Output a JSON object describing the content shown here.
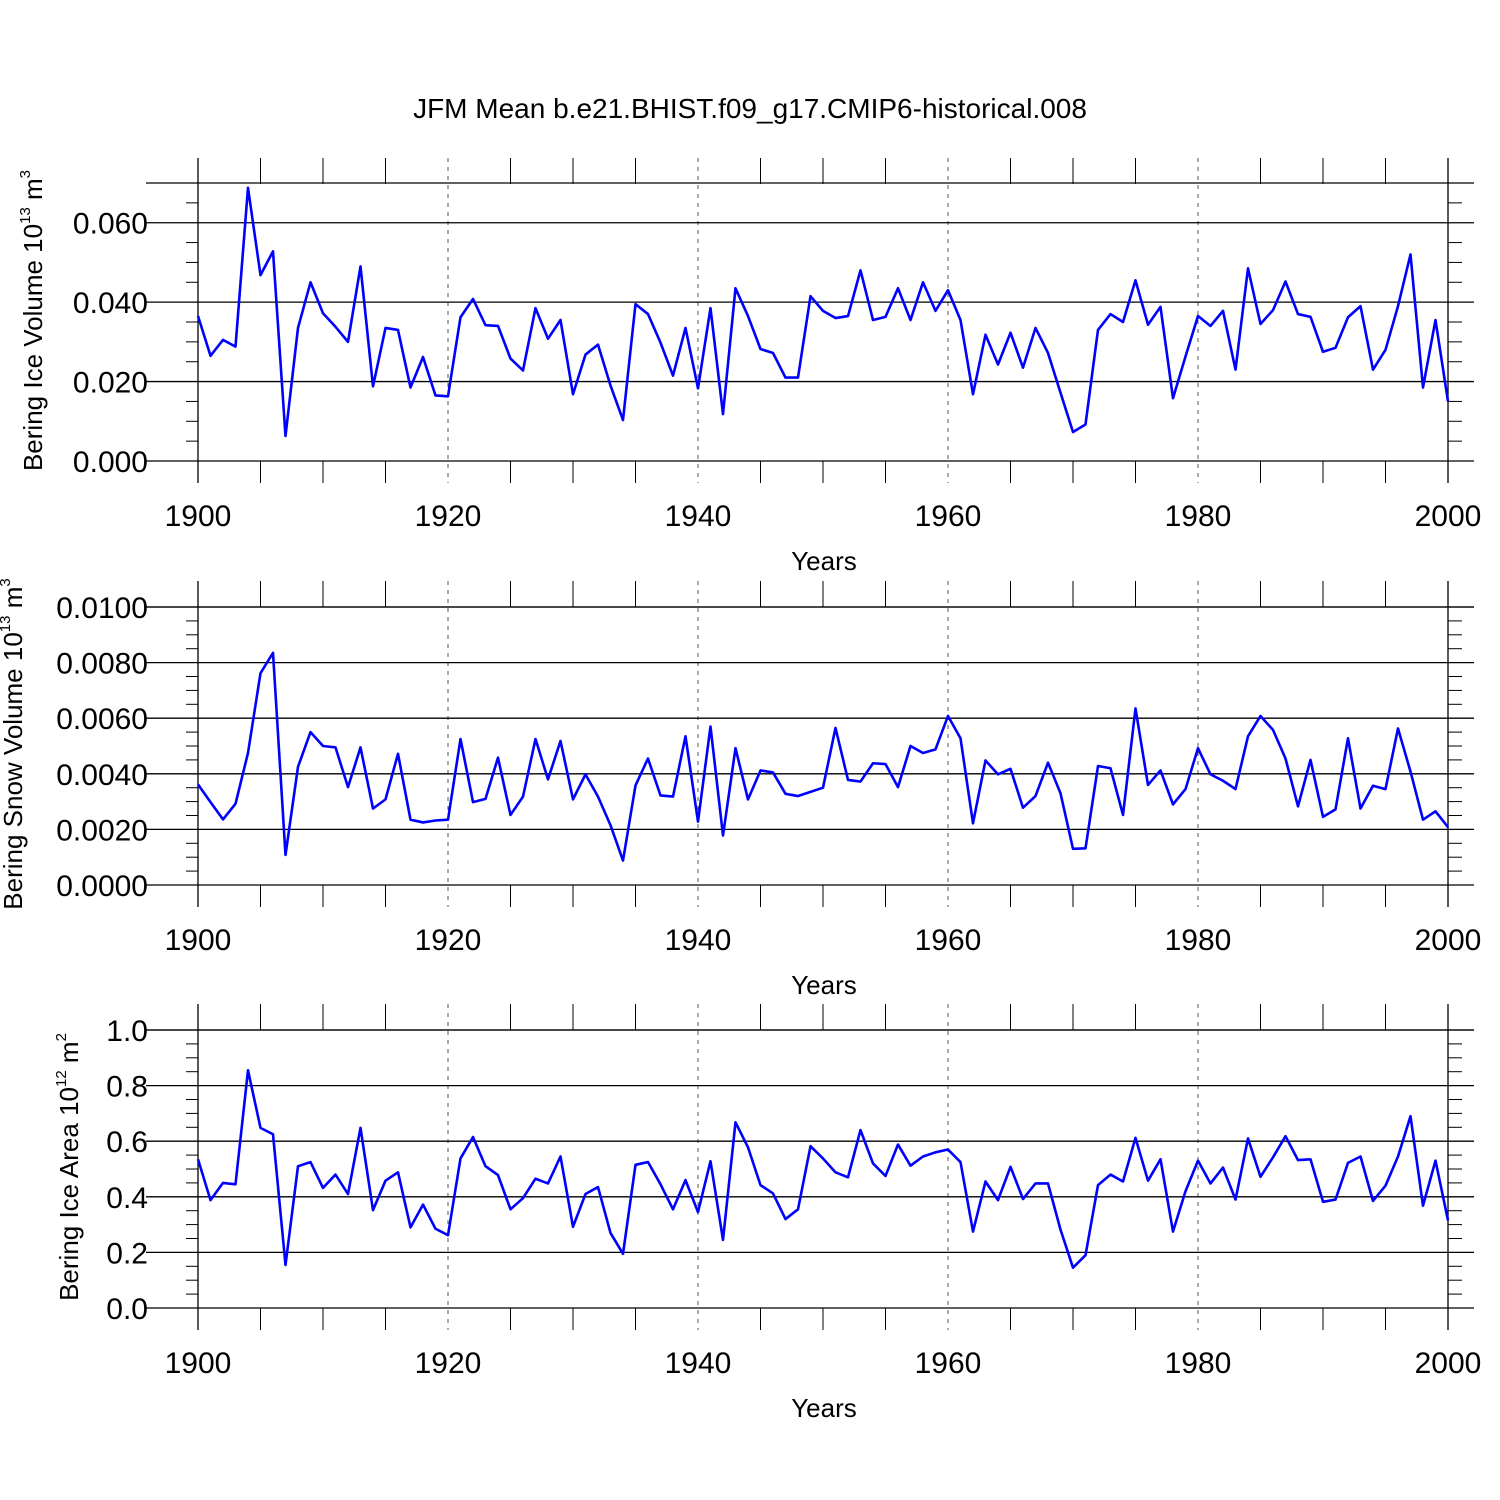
{
  "figure_title": "JFM Mean b.e21.BHIST.f09_g17.CMIP6-historical.008",
  "line_color": "#0000ff",
  "chart_data": [
    {
      "type": "line",
      "title": "JFM Mean b.e21.BHIST.f09_g17.CMIP6-historical.008",
      "xlabel": "Years",
      "ylabel": "Bering Ice Volume",
      "ylabel_unit_base": "10",
      "ylabel_unit_exp": "13",
      "ylabel_unit_m": "m",
      "ylabel_unit_m_exp": "3",
      "xlim": [
        1900,
        2000
      ],
      "ylim": [
        0.0,
        0.07
      ],
      "xticks": [
        1900,
        1920,
        1940,
        1960,
        1980,
        2000
      ],
      "xtick_labels": [
        "1900",
        "1920",
        "1940",
        "1960",
        "1980",
        "2000"
      ],
      "yticks": [
        0.0,
        0.02,
        0.04,
        0.06
      ],
      "ytick_labels": [
        "0.000",
        "0.020",
        "0.040",
        "0.060"
      ],
      "y_minor_step": 0.005,
      "series": [
        {
          "name": "Bering Ice Volume",
          "x_start": 1900,
          "values": [
            0.0365,
            0.0265,
            0.0305,
            0.0288,
            0.0688,
            0.0468,
            0.0528,
            0.0063,
            0.0335,
            0.045,
            0.0372,
            0.0338,
            0.03,
            0.049,
            0.0188,
            0.0335,
            0.033,
            0.0185,
            0.0262,
            0.0165,
            0.0163,
            0.0362,
            0.0408,
            0.0342,
            0.034,
            0.0258,
            0.0228,
            0.0385,
            0.0308,
            0.0355,
            0.0168,
            0.0268,
            0.0293,
            0.019,
            0.0103,
            0.0395,
            0.037,
            0.0298,
            0.0215,
            0.0335,
            0.0183,
            0.0385,
            0.0118,
            0.0435,
            0.0365,
            0.0282,
            0.0272,
            0.021,
            0.021,
            0.0415,
            0.0378,
            0.036,
            0.0365,
            0.048,
            0.0355,
            0.0363,
            0.0435,
            0.0355,
            0.045,
            0.0378,
            0.043,
            0.0355,
            0.0168,
            0.0318,
            0.0243,
            0.0323,
            0.0235,
            0.0335,
            0.0272,
            0.0172,
            0.0073,
            0.0092,
            0.033,
            0.037,
            0.035,
            0.0455,
            0.0343,
            0.0388,
            0.0158,
            0.0263,
            0.0365,
            0.034,
            0.0378,
            0.023,
            0.0485,
            0.0345,
            0.038,
            0.0452,
            0.037,
            0.0363,
            0.0275,
            0.0285,
            0.0362,
            0.039,
            0.023,
            0.028,
            0.039,
            0.052,
            0.0185,
            0.0355,
            0.015
          ]
        }
      ]
    },
    {
      "type": "line",
      "xlabel": "Years",
      "ylabel": "Bering Snow Volume",
      "ylabel_unit_base": "10",
      "ylabel_unit_exp": "13",
      "ylabel_unit_m": "m",
      "ylabel_unit_m_exp": "3",
      "xlim": [
        1900,
        2000
      ],
      "ylim": [
        0.0,
        0.01
      ],
      "xticks": [
        1900,
        1920,
        1940,
        1960,
        1980,
        2000
      ],
      "xtick_labels": [
        "1900",
        "1920",
        "1940",
        "1960",
        "1980",
        "2000"
      ],
      "yticks": [
        0.0,
        0.002,
        0.004,
        0.006,
        0.008,
        0.01
      ],
      "ytick_labels": [
        "0.0000",
        "0.0020",
        "0.0040",
        "0.0060",
        "0.0080",
        "0.0100"
      ],
      "y_minor_step": 0.0005,
      "series": [
        {
          "name": "Bering Snow Volume",
          "x_start": 1900,
          "values": [
            0.00362,
            0.00298,
            0.00236,
            0.00292,
            0.00475,
            0.00762,
            0.00835,
            0.00108,
            0.00425,
            0.0055,
            0.005,
            0.00495,
            0.00352,
            0.00495,
            0.00275,
            0.00308,
            0.00472,
            0.00235,
            0.00225,
            0.00232,
            0.00235,
            0.00525,
            0.00298,
            0.0031,
            0.00458,
            0.00252,
            0.00318,
            0.00525,
            0.0038,
            0.00518,
            0.00308,
            0.00398,
            0.00318,
            0.00215,
            0.00088,
            0.00358,
            0.00455,
            0.00322,
            0.00318,
            0.00535,
            0.00228,
            0.0057,
            0.00178,
            0.00492,
            0.00308,
            0.00412,
            0.00405,
            0.00328,
            0.0032,
            0.00335,
            0.0035,
            0.00565,
            0.00378,
            0.00372,
            0.00438,
            0.00435,
            0.00352,
            0.005,
            0.00475,
            0.00488,
            0.00608,
            0.00528,
            0.00222,
            0.00448,
            0.00398,
            0.00418,
            0.00278,
            0.0032,
            0.0044,
            0.0033,
            0.0013,
            0.00132,
            0.00428,
            0.0042,
            0.00252,
            0.00635,
            0.0036,
            0.00412,
            0.0029,
            0.00345,
            0.00492,
            0.00398,
            0.00375,
            0.00345,
            0.00535,
            0.00608,
            0.00558,
            0.00455,
            0.00283,
            0.0045,
            0.00245,
            0.00272,
            0.00528,
            0.00275,
            0.00357,
            0.00345,
            0.00563,
            0.00408,
            0.00235,
            0.00265,
            0.00208
          ]
        }
      ]
    },
    {
      "type": "line",
      "xlabel": "Years",
      "ylabel": "Bering Ice Area",
      "ylabel_unit_base": "10",
      "ylabel_unit_exp": "12",
      "ylabel_unit_m": "m",
      "ylabel_unit_m_exp": "2",
      "xlim": [
        1900,
        2000
      ],
      "ylim": [
        0.0,
        1.0
      ],
      "xticks": [
        1900,
        1920,
        1940,
        1960,
        1980,
        2000
      ],
      "xtick_labels": [
        "1900",
        "1920",
        "1940",
        "1960",
        "1980",
        "2000"
      ],
      "yticks": [
        0.0,
        0.2,
        0.4,
        0.6,
        0.8,
        1.0
      ],
      "ytick_labels": [
        "0.0",
        "0.2",
        "0.4",
        "0.6",
        "0.8",
        "1.0"
      ],
      "y_minor_step": 0.05,
      "series": [
        {
          "name": "Bering Ice Area",
          "x_start": 1900,
          "values": [
            0.535,
            0.388,
            0.45,
            0.445,
            0.855,
            0.648,
            0.625,
            0.155,
            0.51,
            0.525,
            0.432,
            0.48,
            0.41,
            0.648,
            0.352,
            0.458,
            0.488,
            0.29,
            0.372,
            0.285,
            0.262,
            0.538,
            0.615,
            0.51,
            0.478,
            0.355,
            0.395,
            0.465,
            0.448,
            0.545,
            0.292,
            0.41,
            0.435,
            0.27,
            0.195,
            0.515,
            0.525,
            0.445,
            0.355,
            0.46,
            0.345,
            0.528,
            0.245,
            0.668,
            0.578,
            0.442,
            0.412,
            0.32,
            0.355,
            0.582,
            0.538,
            0.488,
            0.47,
            0.64,
            0.52,
            0.475,
            0.588,
            0.512,
            0.545,
            0.56,
            0.57,
            0.525,
            0.275,
            0.455,
            0.388,
            0.508,
            0.392,
            0.448,
            0.448,
            0.282,
            0.145,
            0.19,
            0.442,
            0.48,
            0.455,
            0.612,
            0.458,
            0.535,
            0.275,
            0.42,
            0.53,
            0.448,
            0.505,
            0.39,
            0.61,
            0.472,
            0.542,
            0.618,
            0.532,
            0.535,
            0.382,
            0.39,
            0.522,
            0.545,
            0.385,
            0.44,
            0.545,
            0.69,
            0.368,
            0.53,
            0.315
          ]
        }
      ]
    }
  ]
}
